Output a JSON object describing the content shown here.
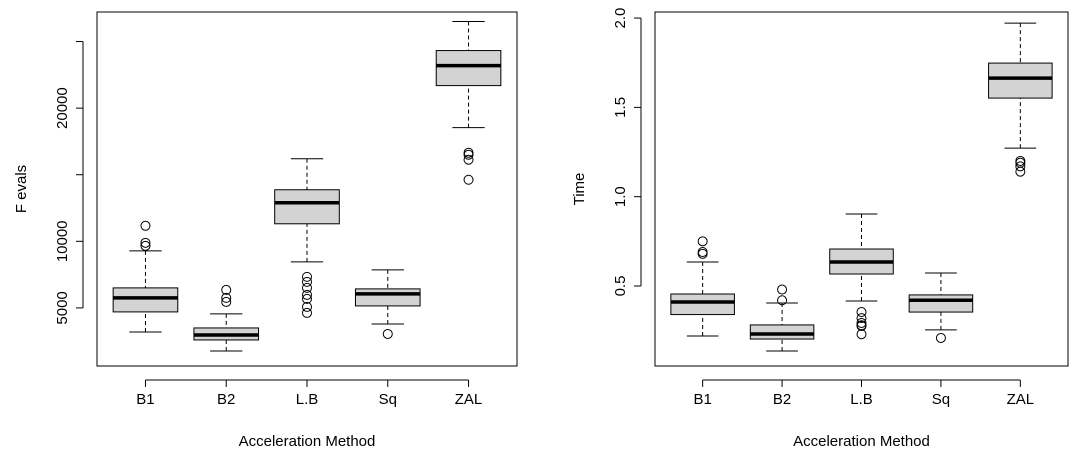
{
  "chart_data": [
    {
      "type": "boxplot",
      "y_label": "F evals",
      "x_label": "Acceleration Method",
      "categories": [
        "B1",
        "B2",
        "L.B",
        "Sq",
        "ZAL"
      ],
      "color": "#d3d3d3",
      "ylim": [
        639,
        27218
      ],
      "yticks": [
        5000,
        10000,
        20000
      ],
      "minor_yticks": [
        15000,
        25000
      ],
      "boxes": [
        {
          "whisker_low": 3195,
          "q1": 4700,
          "median": 5752,
          "q3": 6504,
          "whisker_high": 9286,
          "outliers": [
            9662,
            9887,
            11165
          ]
        },
        {
          "whisker_low": 1767,
          "q1": 2594,
          "median": 2970,
          "q3": 3496,
          "whisker_high": 4549,
          "outliers": [
            5451,
            5752,
            6353
          ]
        },
        {
          "whisker_low": 8459,
          "q1": 11316,
          "median": 12895,
          "q3": 13872,
          "whisker_high": 16203,
          "outliers": [
            7331,
            6955,
            6504,
            5977,
            5677,
            5075,
            4624
          ]
        },
        {
          "whisker_low": 3797,
          "q1": 5150,
          "median": 6053,
          "q3": 6429,
          "whisker_high": 7857,
          "outliers": [
            3045
          ]
        },
        {
          "whisker_low": 18534,
          "q1": 21692,
          "median": 23195,
          "q3": 24323,
          "whisker_high": 26504,
          "outliers": [
            16654,
            16504,
            16128,
            14624
          ]
        }
      ]
    },
    {
      "type": "boxplot",
      "y_label": "Time",
      "x_label": "Acceleration Method",
      "categories": [
        "B1",
        "B2",
        "L.B",
        "Sq",
        "ZAL"
      ],
      "color": "#d3d3d3",
      "ylim": [
        0.052,
        2.034
      ],
      "yticks": [
        0.5,
        {
          "value": 1,
          "label": "1.0"
        },
        1.5,
        {
          "value": 2,
          "label": "2.0"
        }
      ],
      "boxes": [
        {
          "whisker_low": 0.22,
          "q1": 0.34,
          "median": 0.41,
          "q3": 0.455,
          "whisker_high": 0.634,
          "outliers": [
            0.69,
            0.68,
            0.75
          ]
        },
        {
          "whisker_low": 0.136,
          "q1": 0.203,
          "median": 0.231,
          "q3": 0.282,
          "whisker_high": 0.405,
          "outliers": [
            0.42,
            0.48
          ]
        },
        {
          "whisker_low": 0.416,
          "q1": 0.567,
          "median": 0.634,
          "q3": 0.707,
          "whisker_high": 0.903,
          "outliers": [
            0.354,
            0.32,
            0.293,
            0.276,
            0.28,
            0.23
          ]
        },
        {
          "whisker_low": 0.254,
          "q1": 0.354,
          "median": 0.42,
          "q3": 0.45,
          "whisker_high": 0.573,
          "outliers": [
            0.209
          ]
        },
        {
          "whisker_low": 1.272,
          "q1": 1.552,
          "median": 1.664,
          "q3": 1.748,
          "whisker_high": 1.972,
          "outliers": [
            1.2,
            1.19,
            1.17,
            1.14
          ]
        }
      ]
    }
  ]
}
